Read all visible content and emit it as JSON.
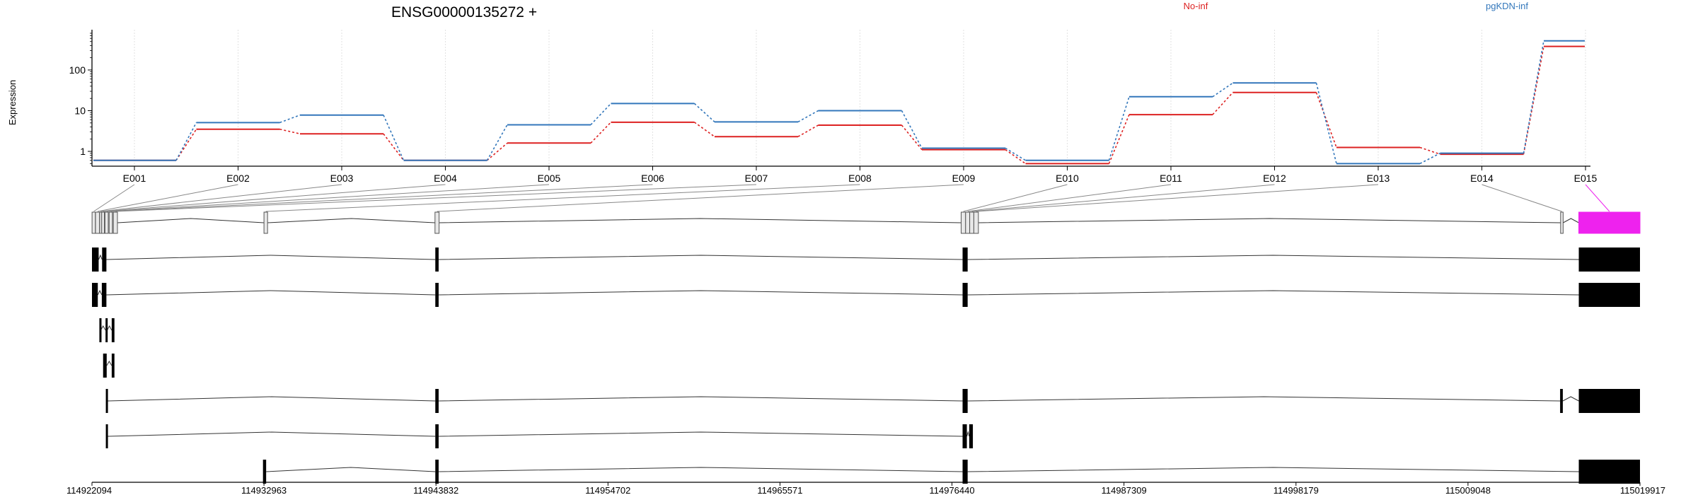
{
  "chart_data": {
    "type": "line",
    "title": "ENSG00000135272 +",
    "ylabel": "Expression",
    "yscale": "log",
    "ylim": [
      0.45,
      800
    ],
    "yticks": [
      1,
      10,
      100
    ],
    "ytick_labels": [
      "1",
      "10",
      "100"
    ],
    "categories": [
      "E001",
      "E002",
      "E003",
      "E004",
      "E005",
      "E006",
      "E007",
      "E008",
      "E009",
      "E010",
      "E011",
      "E012",
      "E013",
      "E014",
      "E015"
    ],
    "series": [
      {
        "name": "No-inf",
        "color": "#dd2222",
        "values": [
          0.6,
          3.5,
          2.7,
          0.6,
          1.6,
          5.2,
          2.3,
          4.4,
          1.1,
          0.5,
          8.0,
          28.0,
          1.25,
          0.85,
          380.0
        ]
      },
      {
        "name": "pgKDN-inf",
        "color": "#3377bb",
        "values": [
          0.6,
          5.1,
          7.8,
          0.6,
          4.5,
          15.0,
          5.3,
          10.0,
          1.2,
          0.6,
          22.0,
          48.0,
          0.5,
          0.9,
          520.0
        ]
      }
    ],
    "gene_model": {
      "coordinate_ticks": [
        "114922094",
        "114932963",
        "114943832",
        "114954702",
        "114965571",
        "114976440",
        "114987309",
        "114998179",
        "115009048",
        "115019917"
      ],
      "genomic_start": 114922094,
      "genomic_end": 115019917,
      "highlighted_exon": "E015",
      "highlight_color": "#ee22ee",
      "exon_bins": [
        {
          "id": "E001",
          "start": 114922100,
          "end": 114922330
        },
        {
          "id": "E002",
          "start": 114922340,
          "end": 114922620
        },
        {
          "id": "E003",
          "start": 114922630,
          "end": 114922760
        },
        {
          "id": "E004",
          "start": 114922770,
          "end": 114922960
        },
        {
          "id": "E005",
          "start": 114923000,
          "end": 114923230
        },
        {
          "id": "E006",
          "start": 114923290,
          "end": 114923520
        },
        {
          "id": "E007",
          "start": 114923580,
          "end": 114923870
        },
        {
          "id": "E008",
          "start": 114932963,
          "end": 114933190
        },
        {
          "id": "E009",
          "start": 114943770,
          "end": 114944030
        },
        {
          "id": "E010",
          "start": 114977020,
          "end": 114977300
        },
        {
          "id": "E011",
          "start": 114977300,
          "end": 114977560
        },
        {
          "id": "E012",
          "start": 114977560,
          "end": 114977820
        },
        {
          "id": "E013",
          "start": 114977820,
          "end": 114978110
        },
        {
          "id": "E014",
          "start": 115014900,
          "end": 115015060
        },
        {
          "id": "E015",
          "start": 115016050,
          "end": 115019917
        }
      ],
      "transcripts": [
        {
          "exons": [
            [
              114922094,
              114922560
            ],
            [
              114922800,
              114923100
            ],
            [
              114943790,
              114944000
            ],
            [
              114977110,
              114977430
            ],
            [
              115016050,
              115019917
            ]
          ]
        },
        {
          "exons": [
            [
              114922094,
              114922500
            ],
            [
              114922780,
              114923100
            ],
            [
              114943790,
              114944000
            ],
            [
              114977110,
              114977430
            ],
            [
              115016050,
              115019917
            ]
          ]
        },
        {
          "exons": [
            [
              114922610,
              114922700
            ],
            [
              114923040,
              114923150
            ],
            [
              114923470,
              114923660
            ]
          ]
        },
        {
          "exons": [
            [
              114922870,
              114923120
            ],
            [
              114923470,
              114923660
            ]
          ]
        },
        {
          "exons": [
            [
              114923060,
              114923200
            ],
            [
              114943790,
              114944000
            ],
            [
              114977110,
              114977430
            ],
            [
              115014870,
              115015040
            ],
            [
              115016050,
              115019917
            ]
          ]
        },
        {
          "exons": [
            [
              114923060,
              114923200
            ],
            [
              114943790,
              114944000
            ],
            [
              114977110,
              114977380
            ],
            [
              114977530,
              114977760
            ]
          ]
        },
        {
          "exons": [
            [
              114932900,
              114933100
            ],
            [
              114943790,
              114944000
            ],
            [
              114977110,
              114977430
            ],
            [
              115016050,
              115019917
            ]
          ]
        }
      ]
    }
  }
}
